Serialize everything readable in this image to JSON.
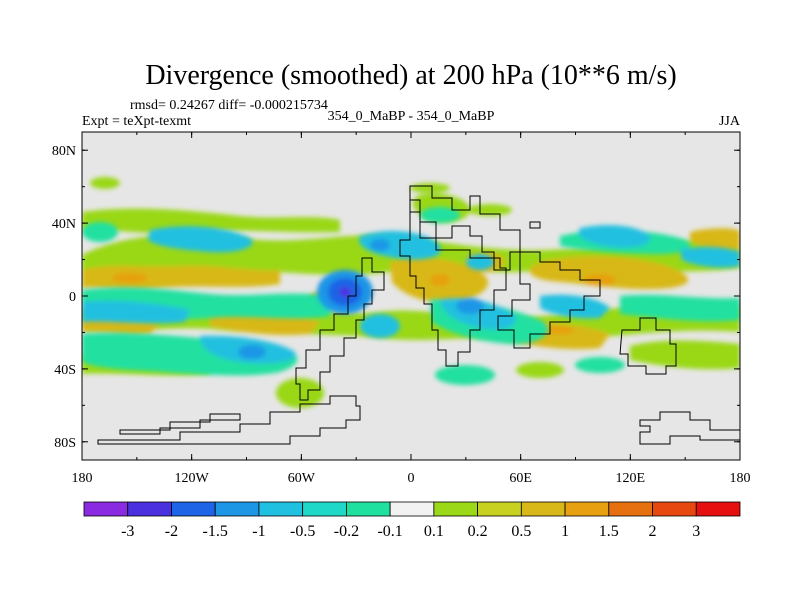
{
  "header": {
    "title": "Divergence (smoothed) at 200 hPa (10**6 m/s)",
    "stats": "rmsd= 0.24267 diff= -0.000215734",
    "experiment": "Expt = teXpt-texmt",
    "case": "354_0_MaBP - 354_0_MaBP",
    "season": "JJA"
  },
  "map": {
    "projection": "cylindrical-equidistant",
    "background_color": "#e6e6e6",
    "lon_range": [
      -180,
      180
    ],
    "lat_range": [
      -90,
      90
    ],
    "x_ticks": [
      {
        "value": -180,
        "label": "180"
      },
      {
        "value": -120,
        "label": "120W"
      },
      {
        "value": -60,
        "label": "60W"
      },
      {
        "value": 0,
        "label": "0"
      },
      {
        "value": 60,
        "label": "60E"
      },
      {
        "value": 120,
        "label": "120E"
      },
      {
        "value": 180,
        "label": "180"
      }
    ],
    "y_ticks": [
      {
        "value": 80,
        "label": "80N"
      },
      {
        "value": 40,
        "label": "40N"
      },
      {
        "value": 0,
        "label": "0"
      },
      {
        "value": -40,
        "label": "40S"
      },
      {
        "value": -80,
        "label": "80S"
      }
    ]
  },
  "colorbar": {
    "colors": [
      "#8a2be2",
      "#4b30e0",
      "#1e64e6",
      "#1e96e6",
      "#20c0e0",
      "#20d8c8",
      "#20e0a0",
      "#f2f2f2",
      "#9ad818",
      "#c8d020",
      "#d8b818",
      "#e6a010",
      "#e67010",
      "#e64810",
      "#e61010"
    ],
    "labels": [
      "-3",
      "-2",
      "-1.5",
      "-1",
      "-0.5",
      "-0.2",
      "-0.1",
      "0.1",
      "0.2",
      "0.5",
      "1",
      "1.5",
      "2",
      "3"
    ]
  }
}
